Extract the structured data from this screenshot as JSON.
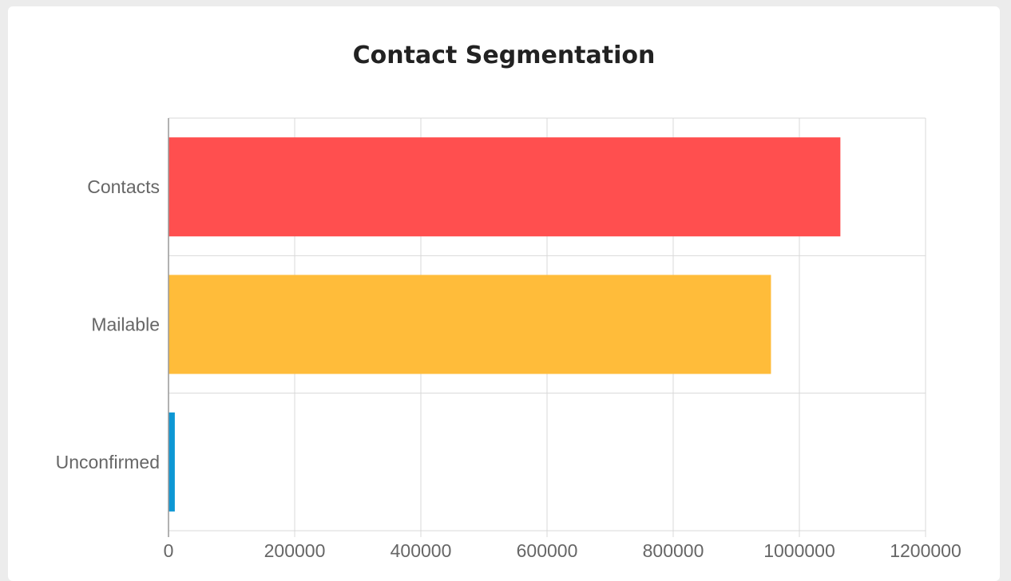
{
  "chart_data": {
    "type": "bar",
    "orientation": "horizontal",
    "title": "Contact Segmentation",
    "categories": [
      "Contacts",
      "Mailable",
      "Unconfirmed"
    ],
    "values": [
      1065000,
      955000,
      10000
    ],
    "colors": [
      "#ff4f4f",
      "#ffbc3a",
      "#0d97d4"
    ],
    "xlim": [
      0,
      1200000
    ],
    "xticks": [
      "0",
      "200000",
      "400000",
      "600000",
      "800000",
      "1000000",
      "1200000"
    ],
    "xlabel": "",
    "ylabel": "",
    "grid": true,
    "legend": "none"
  }
}
